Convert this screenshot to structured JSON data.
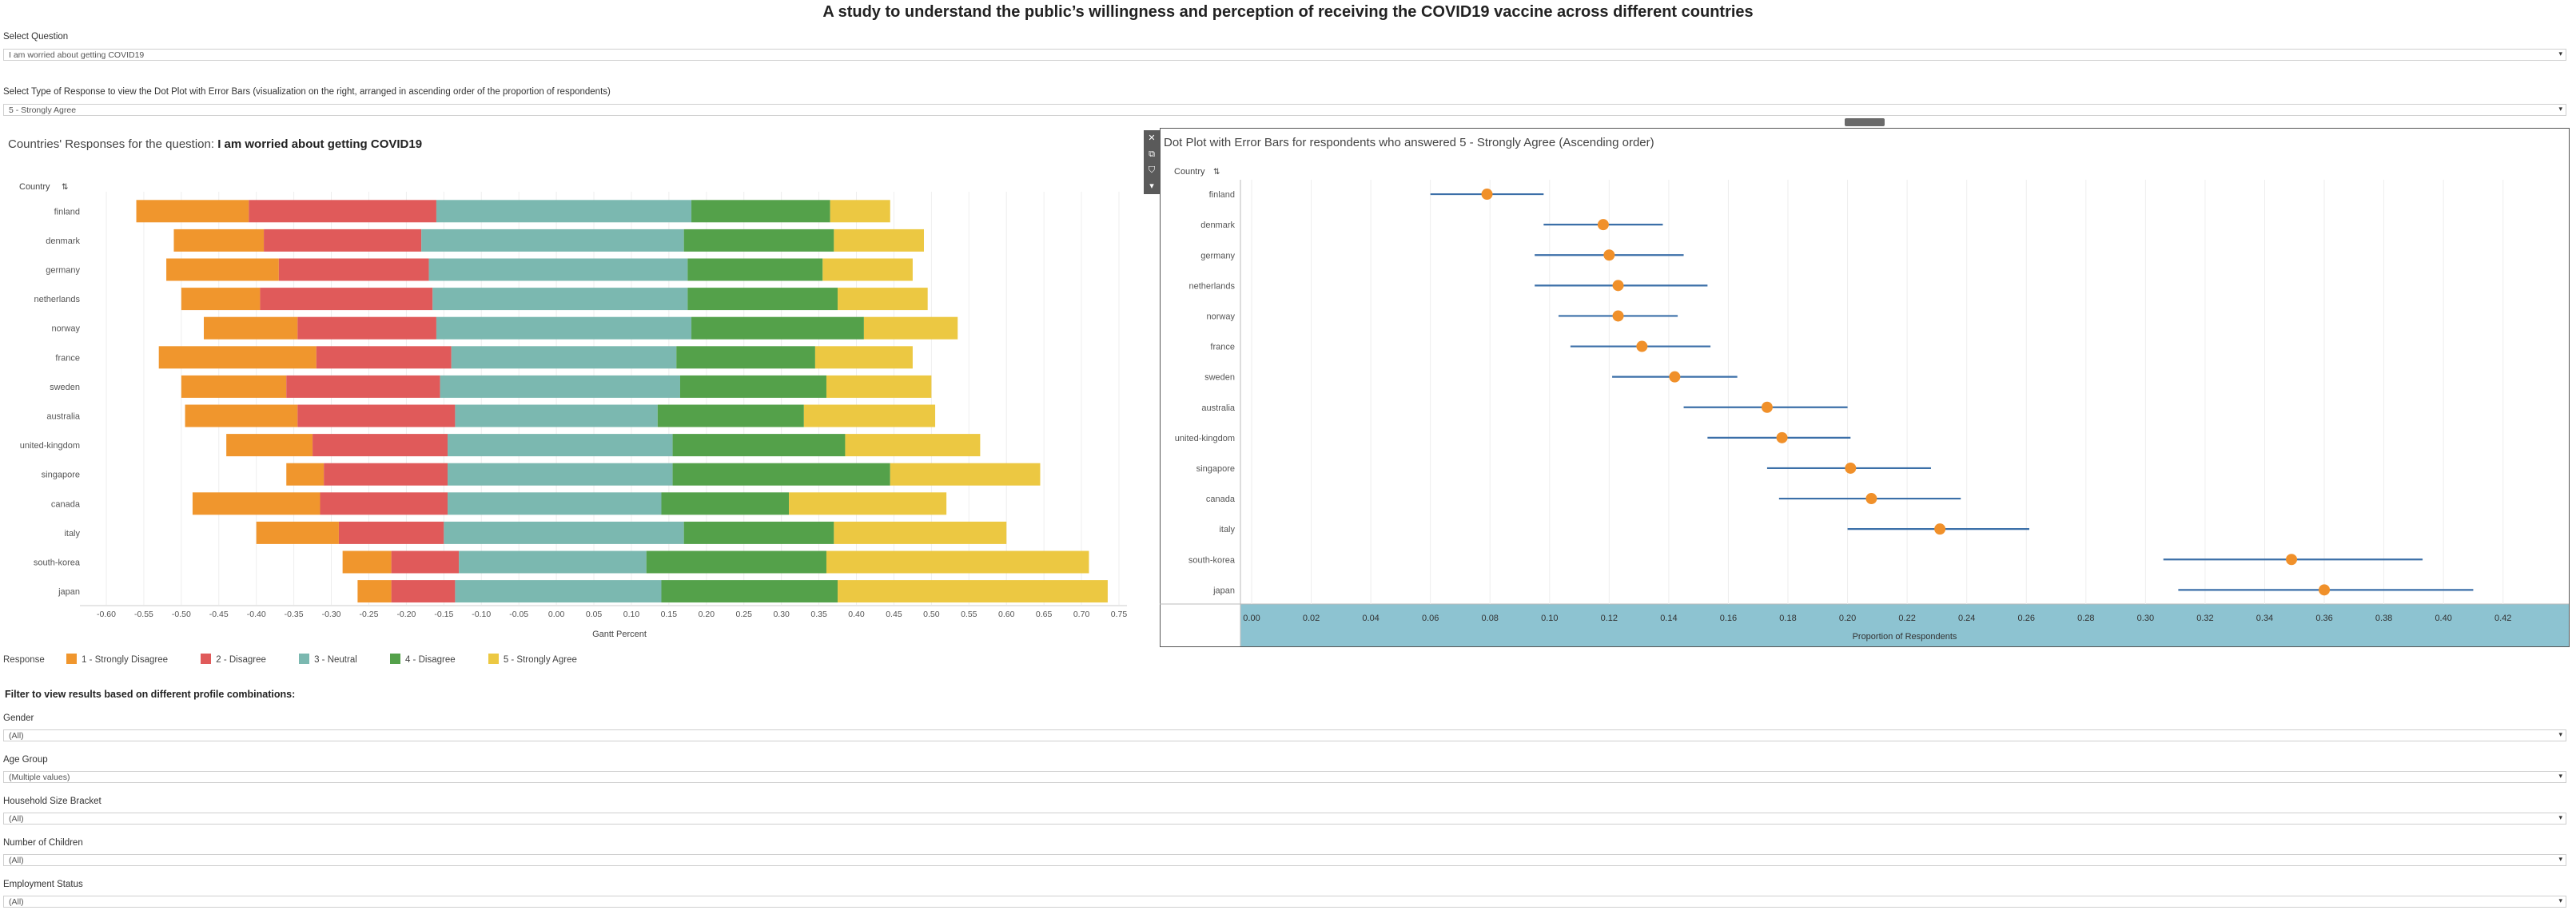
{
  "title": "A study to understand the public’s willingness and perception of receiving the COVID19 vaccine across different countries",
  "filters": {
    "question_label": "Select Question",
    "question_value": "I am worried about getting COVID19",
    "response_type_label": "Select Type of Response to view the Dot Plot with Error Bars (visualization on the right, arranged in ascending order of the proportion of respondents)",
    "response_type_value": "5 - Strongly Agree"
  },
  "left_chart": {
    "title_prefix": "Countries' Responses for the question:",
    "title_question": "I am worried about getting COVID19",
    "column_header": "Country"
  },
  "right_chart": {
    "title": "Dot Plot with Error Bars for respondents who answered 5 - Strongly Agree (Ascending order)",
    "column_header": "Country"
  },
  "legend": {
    "title": "Response",
    "items": [
      {
        "label": "1 - Strongly Disagree",
        "color": "#f0962d"
      },
      {
        "label": "2 - Disagree",
        "color": "#e05a5a"
      },
      {
        "label": "3 - Neutral",
        "color": "#7bb8b0"
      },
      {
        "label": "4 - Disagree",
        "color": "#54a14a"
      },
      {
        "label": "5 - Strongly Agree",
        "color": "#ecc842"
      }
    ]
  },
  "profile": {
    "heading": "Filter to view results based on different profile combinations:",
    "filters": [
      {
        "label": "Gender",
        "value": "(All)"
      },
      {
        "label": "Age Group",
        "value": "(Multiple values)"
      },
      {
        "label": "Household Size Bracket",
        "value": "(All)"
      },
      {
        "label": "Number of Children",
        "value": "(All)"
      },
      {
        "label": "Employment Status",
        "value": "(All)"
      }
    ]
  },
  "chart_data": [
    {
      "type": "bar",
      "title": "Countries' Responses for the question: I am worried about getting COVID19",
      "xlabel": "Gantt Percent",
      "ylabel": "Country",
      "xlim": [
        -0.6,
        0.75
      ],
      "xticks": [
        "-0.60",
        "-0.55",
        "-0.50",
        "-0.45",
        "-0.40",
        "-0.35",
        "-0.30",
        "-0.25",
        "-0.20",
        "-0.15",
        "-0.10",
        "-0.05",
        "0.00",
        "0.05",
        "0.10",
        "0.15",
        "0.20",
        "0.25",
        "0.30",
        "0.35",
        "0.40",
        "0.45",
        "0.50",
        "0.55",
        "0.60",
        "0.65",
        "0.70",
        "0.75"
      ],
      "categories": [
        "finland",
        "denmark",
        "germany",
        "netherlands",
        "norway",
        "france",
        "sweden",
        "australia",
        "united-kingdom",
        "singapore",
        "canada",
        "italy",
        "south-korea",
        "japan"
      ],
      "series": [
        {
          "name": "1 - Strongly Disagree",
          "values": [
            0.15,
            0.12,
            0.15,
            0.105,
            0.125,
            0.21,
            0.14,
            0.15,
            0.115,
            0.05,
            0.17,
            0.11,
            0.065,
            0.045
          ]
        },
        {
          "name": "2 - Disagree",
          "values": [
            0.25,
            0.21,
            0.2,
            0.23,
            0.185,
            0.18,
            0.205,
            0.21,
            0.18,
            0.165,
            0.17,
            0.14,
            0.09,
            0.085
          ]
        },
        {
          "name": "3 - Neutral",
          "values": [
            0.34,
            0.35,
            0.345,
            0.34,
            0.34,
            0.3,
            0.32,
            0.27,
            0.3,
            0.3,
            0.285,
            0.32,
            0.25,
            0.275
          ]
        },
        {
          "name": "4 - Disagree",
          "values": [
            0.185,
            0.2,
            0.18,
            0.2,
            0.23,
            0.185,
            0.195,
            0.195,
            0.23,
            0.29,
            0.17,
            0.2,
            0.24,
            0.235
          ]
        },
        {
          "name": "5 - Strongly Agree",
          "values": [
            0.08,
            0.12,
            0.12,
            0.12,
            0.125,
            0.13,
            0.14,
            0.175,
            0.18,
            0.2,
            0.21,
            0.23,
            0.35,
            0.36
          ]
        }
      ],
      "offsets": [
        -0.56,
        -0.51,
        -0.52,
        -0.5,
        -0.47,
        -0.53,
        -0.5,
        -0.495,
        -0.44,
        -0.36,
        -0.485,
        -0.4,
        -0.285,
        -0.265
      ]
    },
    {
      "type": "scatter",
      "title": "Dot Plot with Error Bars for respondents who answered 5 - Strongly Agree (Ascending order)",
      "xlabel": "Proportion of Respondents",
      "ylabel": "Country",
      "xlim": [
        0.0,
        0.43
      ],
      "xticks": [
        "0.00",
        "0.02",
        "0.04",
        "0.06",
        "0.08",
        "0.10",
        "0.12",
        "0.14",
        "0.16",
        "0.18",
        "0.20",
        "0.22",
        "0.24",
        "0.26",
        "0.28",
        "0.30",
        "0.32",
        "0.34",
        "0.36",
        "0.38",
        "0.40",
        "0.42"
      ],
      "categories": [
        "finland",
        "denmark",
        "germany",
        "netherlands",
        "norway",
        "france",
        "sweden",
        "australia",
        "united-kingdom",
        "singapore",
        "canada",
        "italy",
        "south-korea",
        "japan"
      ],
      "values": [
        0.079,
        0.118,
        0.12,
        0.123,
        0.123,
        0.131,
        0.142,
        0.173,
        0.178,
        0.201,
        0.208,
        0.231,
        0.349,
        0.36
      ],
      "error_low": [
        0.06,
        0.098,
        0.095,
        0.095,
        0.103,
        0.107,
        0.121,
        0.145,
        0.153,
        0.173,
        0.177,
        0.2,
        0.306,
        0.311
      ],
      "error_high": [
        0.098,
        0.138,
        0.145,
        0.153,
        0.143,
        0.154,
        0.163,
        0.2,
        0.201,
        0.228,
        0.238,
        0.261,
        0.393,
        0.41
      ]
    }
  ]
}
